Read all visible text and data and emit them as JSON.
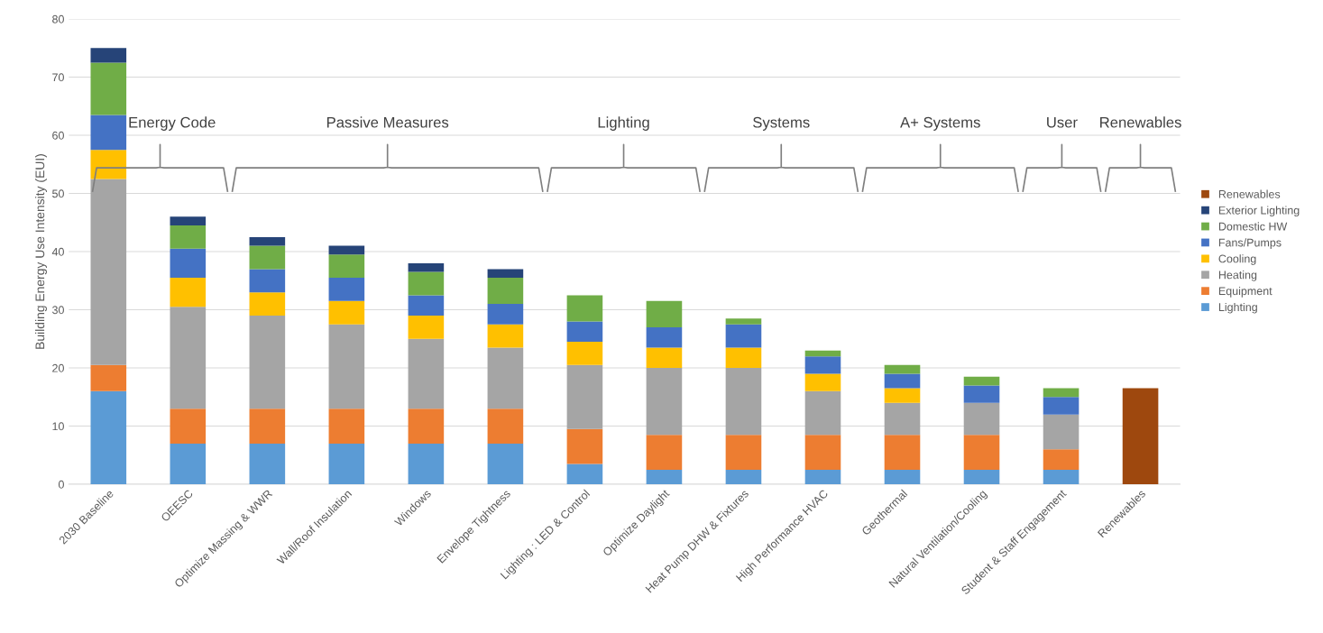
{
  "chart_data": {
    "type": "bar",
    "stacked": true,
    "ylabel": "Building Energy Use Intensity (EUI)",
    "categories": [
      "2030 Baseline",
      "OEESC",
      "Optimize Massing & WWR",
      "Wall/Roof Insulation",
      "Windows",
      "Envelope Tightness",
      "Lighting : LED & Control",
      "Optimize Daylight",
      "Heat Pump DHW & Fixtures",
      "High Performance HVAC",
      "Geothermal",
      "Natural Ventilation/Cooling",
      "Student & Staff Engagement",
      "Renewables"
    ],
    "series": [
      {
        "name": "Lighting",
        "color": "#5b9bd5",
        "values": [
          16,
          7,
          7,
          7,
          7,
          7,
          3.5,
          2.5,
          2.5,
          2.5,
          2.5,
          2.5,
          2.5,
          null
        ]
      },
      {
        "name": "Equipment",
        "color": "#ed7d31",
        "values": [
          4.5,
          6,
          6,
          6,
          6,
          6,
          6,
          6,
          6,
          6,
          6,
          6,
          3.5,
          null
        ]
      },
      {
        "name": "Heating",
        "color": "#a5a5a5",
        "values": [
          32,
          17.5,
          16,
          14.5,
          12,
          10.5,
          11,
          11.5,
          11.5,
          7.5,
          5.5,
          5.5,
          6,
          null
        ]
      },
      {
        "name": "Cooling",
        "color": "#ffc000",
        "values": [
          5,
          5,
          4,
          4,
          4,
          4,
          4,
          3.5,
          3.5,
          3,
          2.5,
          null,
          null,
          null
        ]
      },
      {
        "name": "Fans/Pumps",
        "color": "#4472c4",
        "values": [
          6,
          5,
          4,
          4,
          3.5,
          3.5,
          3.5,
          3.5,
          4,
          3,
          2.5,
          3,
          3,
          null
        ]
      },
      {
        "name": "Domestic HW",
        "color": "#70ad47",
        "values": [
          9,
          4,
          4,
          4,
          4,
          4.5,
          4.5,
          4.5,
          1,
          1,
          1.5,
          1.5,
          1.5,
          null
        ]
      },
      {
        "name": "Exterior Lighting",
        "color": "#264478",
        "values": [
          2.5,
          1.5,
          1.5,
          1.5,
          1.5,
          1.5,
          null,
          null,
          null,
          null,
          null,
          null,
          null,
          null
        ]
      },
      {
        "name": "Renewables",
        "color": "#9e480e",
        "values": [
          null,
          null,
          null,
          null,
          null,
          null,
          null,
          null,
          null,
          null,
          null,
          null,
          null,
          16.5
        ]
      }
    ],
    "annotations": [
      "Energy Code",
      "Passive Measures",
      "Lighting",
      "Systems",
      "A+ Systems",
      "User",
      "Renewables"
    ],
    "ylim": [
      0,
      80
    ],
    "yticks": [
      0,
      10,
      20,
      30,
      40,
      50,
      60,
      70,
      80
    ],
    "grid": "y",
    "legend": "right"
  }
}
